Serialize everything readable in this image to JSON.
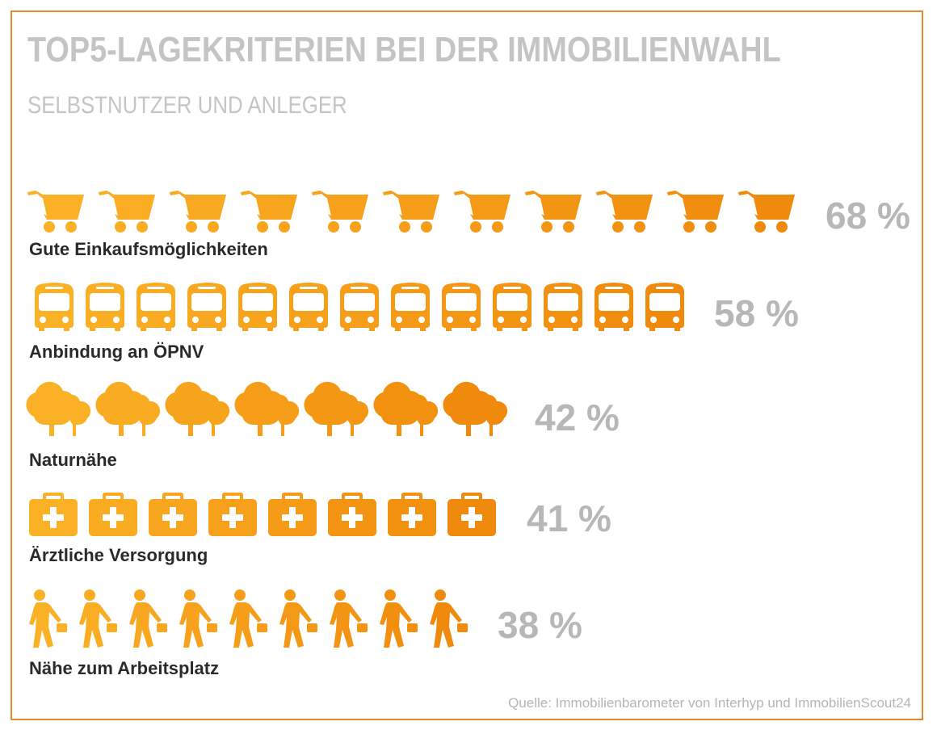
{
  "title": "TOP5-LAGEKRITERIEN BEI DER IMMOBILIENWAHL",
  "subtitle": "SELBSTNUTZER UND ANLEGER",
  "source": "Quelle: Immobilienbarometer von Interhyp und ImmobilienScout24",
  "colors": {
    "frame": "#e08b2a",
    "icon_start": "#fbb126",
    "icon_end": "#f08a0c",
    "title": "#c4c4c4",
    "value": "#b7b7b7",
    "label": "#2a2a2a"
  },
  "chart_data": {
    "type": "bar",
    "style": "pictogram",
    "title": "TOP5-LAGEKRITERIEN BEI DER IMMOBILIENWAHL",
    "subtitle": "SELBSTNUTZER UND ANLEGER",
    "unit": "%",
    "categories": [
      "Gute Einkaufsmöglichkeiten",
      "Anbindung an ÖPNV",
      "Naturnähe",
      "Ärztliche Versorgung",
      "Nähe zum Arbeitsplatz"
    ],
    "values": [
      68,
      58,
      42,
      41,
      38
    ],
    "value_labels": [
      "68 %",
      "58 %",
      "42 %",
      "41 %",
      "38 %"
    ],
    "icons": [
      "shopping-cart-icon",
      "bus-icon",
      "trees-icon",
      "first-aid-kit-icon",
      "commuter-icon"
    ],
    "icon_counts": [
      11,
      13,
      7,
      8,
      9
    ]
  }
}
